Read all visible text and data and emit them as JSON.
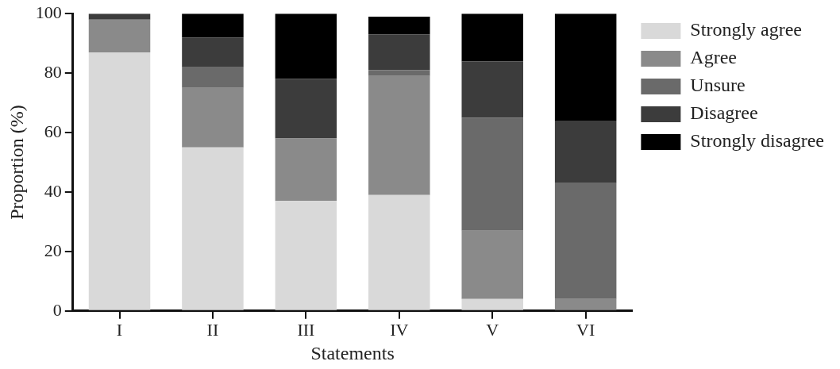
{
  "chart_data": {
    "type": "bar",
    "stacked": true,
    "xlabel": "Statements",
    "ylabel": "Proportion (%)",
    "categories": [
      "I",
      "II",
      "III",
      "IV",
      "V",
      "VI"
    ],
    "series": [
      {
        "name": "Strongly agree",
        "color": "#d9d9d9",
        "values": [
          87,
          55,
          37,
          39,
          4,
          0
        ]
      },
      {
        "name": "Agree",
        "color": "#8a8a8a",
        "values": [
          11,
          20,
          21,
          40,
          23,
          4
        ]
      },
      {
        "name": "Unsure",
        "color": "#6a6a6a",
        "values": [
          0,
          7,
          0,
          2,
          38,
          39
        ]
      },
      {
        "name": "Disagree",
        "color": "#3c3c3c",
        "values": [
          2,
          10,
          20,
          12,
          19,
          21
        ]
      },
      {
        "name": "Strongly disagree",
        "color": "#000000",
        "values": [
          0,
          8,
          22,
          6,
          16,
          36
        ]
      }
    ],
    "ylim": [
      0,
      100
    ],
    "yticks": [
      0,
      20,
      40,
      60,
      80,
      100
    ],
    "grid": false,
    "legend": "right"
  }
}
